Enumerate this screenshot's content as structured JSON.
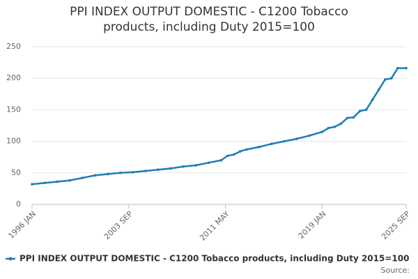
{
  "chart_data": {
    "type": "line",
    "title": "PPI INDEX OUTPUT DOMESTIC - C1200 Tobacco products, including Duty 2015=100",
    "source": "Source:",
    "x": [
      "1996-01",
      "1997-01",
      "1998-01",
      "1999-01",
      "2000-01",
      "2001-01",
      "2002-01",
      "2003-01",
      "2004-01",
      "2005-01",
      "2006-01",
      "2007-01",
      "2008-01",
      "2009-01",
      "2010-01",
      "2011-01",
      "2011-07",
      "2012-01",
      "2012-07",
      "2013-01",
      "2014-01",
      "2015-01",
      "2016-01",
      "2017-01",
      "2018-01",
      "2019-01",
      "2019-07",
      "2020-01",
      "2020-07",
      "2021-01",
      "2021-07",
      "2022-01",
      "2022-07",
      "2023-01",
      "2023-07",
      "2024-01",
      "2024-07",
      "2025-01",
      "2025-09"
    ],
    "series": [
      {
        "name": "PPI INDEX OUTPUT DOMESTIC - C1200 Tobacco products, including Duty 2015=100",
        "color": "#1f7cb8",
        "values": [
          32,
          34,
          36,
          38,
          42,
          46,
          48,
          50,
          51,
          53,
          55,
          57,
          60,
          62,
          66,
          70,
          77,
          79,
          84,
          87,
          91,
          96,
          100,
          104,
          109,
          115,
          121,
          123,
          128,
          137,
          138,
          148,
          150,
          166,
          182,
          198,
          200,
          216,
          216
        ]
      }
    ],
    "xlim": [
      "1996-01",
      "2025-09"
    ],
    "xticks": [
      {
        "value": "1996-01",
        "label": "1996 JAN"
      },
      {
        "value": "2003-09",
        "label": "2003 SEP"
      },
      {
        "value": "2011-05",
        "label": "2011 MAY"
      },
      {
        "value": "2019-01",
        "label": "2019 JAN"
      },
      {
        "value": "2025-09",
        "label": "2025 SEP"
      }
    ],
    "ylim": [
      0,
      250
    ],
    "yticks": [
      0,
      50,
      100,
      150,
      200,
      250
    ],
    "grid": true
  }
}
